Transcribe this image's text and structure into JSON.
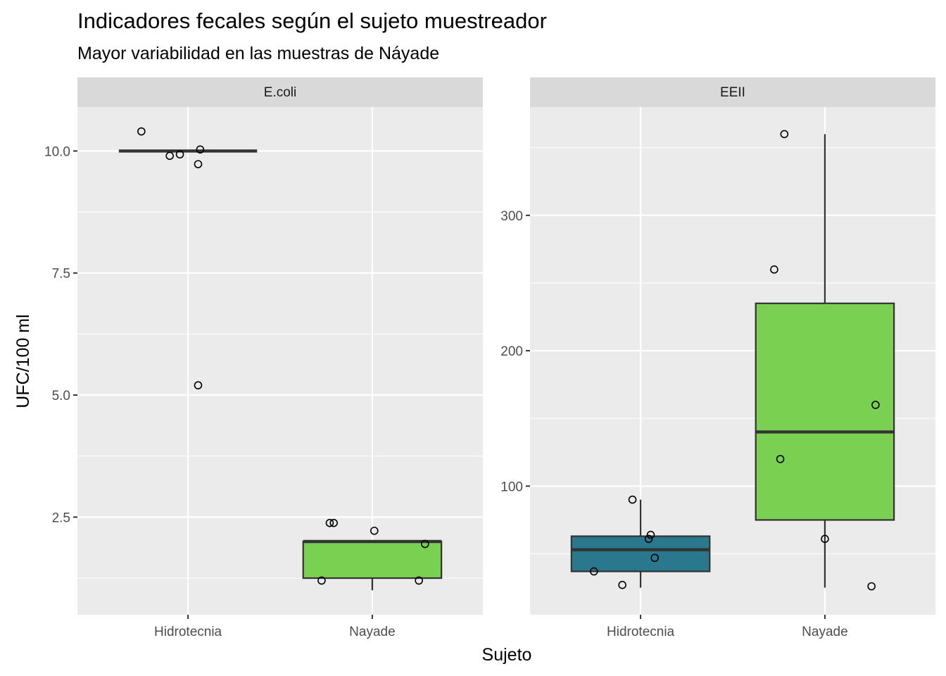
{
  "chart_data": {
    "type": "boxplot",
    "title": "Indicadores fecales según el sujeto muestreador",
    "subtitle": "Mayor variabilidad en las muestras de Náyade",
    "xlabel": "Sujeto",
    "ylabel": "UFC/100 ml",
    "categories": [
      "Hidrotecnia",
      "Nayade"
    ],
    "fill_colors": {
      "Hidrotecnia": "#2a788e",
      "Nayade": "#7ad151"
    },
    "panels": [
      {
        "name": "E.coli",
        "ylim": [
          0.5,
          10.9
        ],
        "yticks": [
          2.5,
          5.0,
          7.5,
          10.0
        ],
        "ytick_labels": [
          "2.5",
          "5.0",
          "7.5",
          "10.0"
        ],
        "boxes": [
          {
            "category": "Hidrotecnia",
            "min": 10.0,
            "q1": 10.0,
            "median": 10.0,
            "q3": 10.0,
            "max": 10.0
          },
          {
            "category": "Nayade",
            "min": 1.0,
            "q1": 1.25,
            "median": 2.0,
            "q3": 2.0,
            "max": 2.0
          }
        ],
        "points": [
          {
            "category": "Hidrotecnia",
            "jitter": -0.23,
            "y": 10.4
          },
          {
            "category": "Hidrotecnia",
            "jitter": -0.09,
            "y": 9.9
          },
          {
            "category": "Hidrotecnia",
            "jitter": -0.04,
            "y": 9.93
          },
          {
            "category": "Hidrotecnia",
            "jitter": 0.06,
            "y": 10.03
          },
          {
            "category": "Hidrotecnia",
            "jitter": 0.05,
            "y": 9.73
          },
          {
            "category": "Hidrotecnia",
            "jitter": 0.05,
            "y": 5.2
          },
          {
            "category": "Nayade",
            "jitter": -0.21,
            "y": 2.38
          },
          {
            "category": "Nayade",
            "jitter": -0.19,
            "y": 2.38
          },
          {
            "category": "Nayade",
            "jitter": 0.01,
            "y": 2.22
          },
          {
            "category": "Nayade",
            "jitter": 0.26,
            "y": 1.95
          },
          {
            "category": "Nayade",
            "jitter": -0.25,
            "y": 1.2
          },
          {
            "category": "Nayade",
            "jitter": 0.23,
            "y": 1.2
          }
        ]
      },
      {
        "name": "EEII",
        "ylim": [
          5,
          380
        ],
        "yticks": [
          100,
          200,
          300
        ],
        "ytick_labels": [
          "100",
          "200",
          "300"
        ],
        "boxes": [
          {
            "category": "Hidrotecnia",
            "min": 25,
            "q1": 37,
            "median": 53,
            "q3": 63,
            "max": 90
          },
          {
            "category": "Nayade",
            "min": 25,
            "q1": 75,
            "median": 140,
            "q3": 235,
            "max": 360
          }
        ],
        "points": [
          {
            "category": "Hidrotecnia",
            "jitter": -0.23,
            "y": 37
          },
          {
            "category": "Hidrotecnia",
            "jitter": -0.09,
            "y": 27
          },
          {
            "category": "Hidrotecnia",
            "jitter": -0.04,
            "y": 90
          },
          {
            "category": "Hidrotecnia",
            "jitter": 0.05,
            "y": 64
          },
          {
            "category": "Hidrotecnia",
            "jitter": 0.04,
            "y": 61
          },
          {
            "category": "Hidrotecnia",
            "jitter": 0.07,
            "y": 47
          },
          {
            "category": "Nayade",
            "jitter": -0.25,
            "y": 260
          },
          {
            "category": "Nayade",
            "jitter": -0.2,
            "y": 360
          },
          {
            "category": "Nayade",
            "jitter": -0.22,
            "y": 120
          },
          {
            "category": "Nayade",
            "jitter": 0.25,
            "y": 160
          },
          {
            "category": "Nayade",
            "jitter": 0.0,
            "y": 61
          },
          {
            "category": "Nayade",
            "jitter": 0.23,
            "y": 26
          }
        ]
      }
    ]
  }
}
